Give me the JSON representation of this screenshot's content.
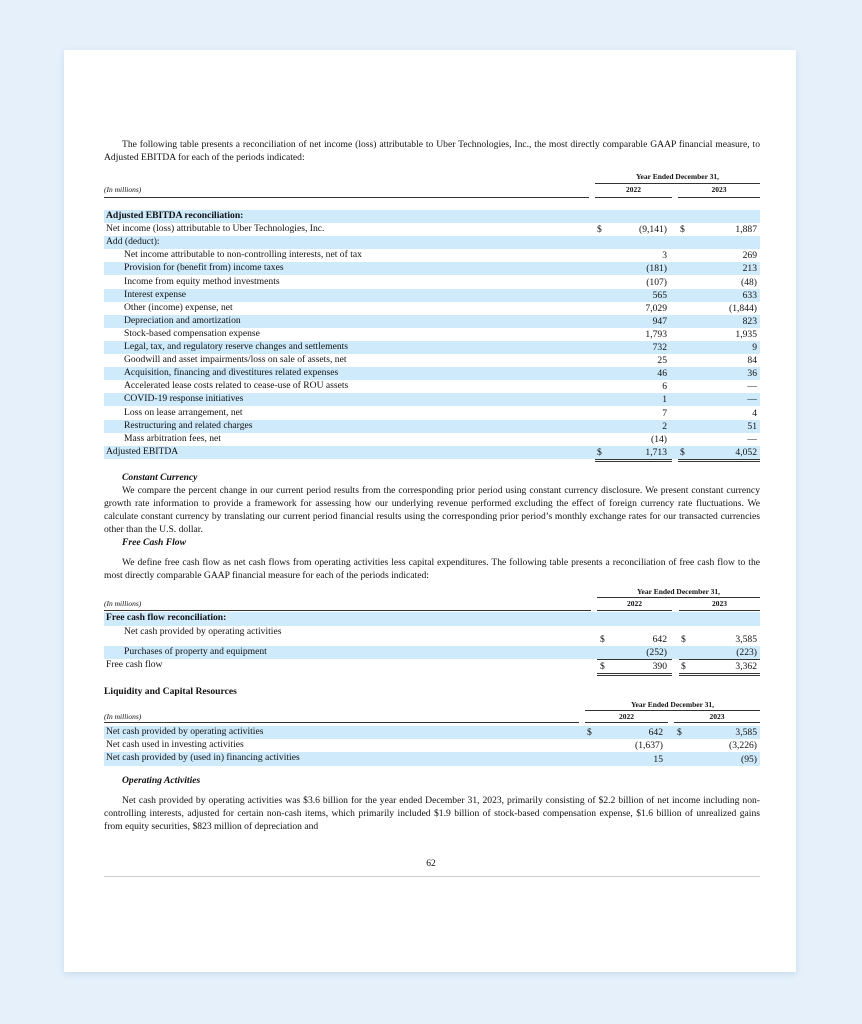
{
  "intro": "The following table presents a reconciliation of net income (loss) attributable to Uber Technologies, Inc., the most directly comparable GAAP financial measure, to Adjusted EBITDA for each of the periods indicated:",
  "tables": [
    {
      "units": "(In millions)",
      "period_header": "Year Ended December 31,",
      "years": [
        "2022",
        "2023"
      ],
      "rows": [
        {
          "label": "Adjusted EBITDA reconciliation:",
          "bold": true
        },
        {
          "label": "Net income (loss) attributable to Uber Technologies, Inc.",
          "d1": "$",
          "v1": "(9,141)",
          "d2": "$",
          "v2": "1,887"
        },
        {
          "label": "Add (deduct):"
        },
        {
          "label": "Net income attributable to non-controlling interests, net of tax",
          "indent": true,
          "v1": "3",
          "v2": "269"
        },
        {
          "label": "Provision for (benefit from) income taxes",
          "indent": true,
          "v1": "(181)",
          "v2": "213"
        },
        {
          "label": "Income from equity method investments",
          "indent": true,
          "v1": "(107)",
          "v2": "(48)"
        },
        {
          "label": "Interest expense",
          "indent": true,
          "v1": "565",
          "v2": "633"
        },
        {
          "label": "Other (income) expense, net",
          "indent": true,
          "v1": "7,029",
          "v2": "(1,844)"
        },
        {
          "label": "Depreciation and amortization",
          "indent": true,
          "v1": "947",
          "v2": "823"
        },
        {
          "label": "Stock-based compensation expense",
          "indent": true,
          "v1": "1,793",
          "v2": "1,935"
        },
        {
          "label": "Legal, tax, and regulatory reserve changes and settlements",
          "indent": true,
          "v1": "732",
          "v2": "9"
        },
        {
          "label": "Goodwill and asset impairments/loss on sale of assets, net",
          "indent": true,
          "v1": "25",
          "v2": "84"
        },
        {
          "label": "Acquisition, financing and divestitures related expenses",
          "indent": true,
          "v1": "46",
          "v2": "36"
        },
        {
          "label": "Accelerated lease costs related to cease-use of ROU assets",
          "indent": true,
          "v1": "6",
          "v2": "—"
        },
        {
          "label": "COVID-19 response initiatives",
          "indent": true,
          "v1": "1",
          "v2": "—"
        },
        {
          "label": "Loss on lease arrangement, net",
          "indent": true,
          "v1": "7",
          "v2": "4"
        },
        {
          "label": "Restructuring and related charges",
          "indent": true,
          "v1": "2",
          "v2": "51"
        },
        {
          "label": "Mass arbitration fees, net",
          "indent": true,
          "v1": "(14)",
          "v2": "—",
          "underline": "single"
        },
        {
          "label": "Adjusted EBITDA",
          "d1": "$",
          "v1": "1,713",
          "d2": "$",
          "v2": "4,052",
          "underline": "double"
        }
      ]
    },
    {
      "units": "(In millions)",
      "period_header": "Year Ended December 31,",
      "years": [
        "2022",
        "2023"
      ],
      "rows": [
        {
          "label": "Free cash flow reconciliation:",
          "bold": true
        },
        {
          "label": "Net cash provided by operating activities",
          "indent": true,
          "d1": "$",
          "v1": "642",
          "d2": "$",
          "v2": "3,585",
          "tall": true
        },
        {
          "label": "Purchases of property and equipment",
          "indent": true,
          "v1": "(252)",
          "v2": "(223)",
          "underline": "single"
        },
        {
          "label": "Free cash flow",
          "d1": "$",
          "v1": "390",
          "d2": "$",
          "v2": "3,362",
          "underline": "double"
        }
      ]
    },
    {
      "units": "(In millions)",
      "period_header": "Year Ended December 31,",
      "years": [
        "2022",
        "2023"
      ],
      "rows": [
        {
          "label": "Net cash provided by operating activities",
          "d1": "$",
          "v1": "642",
          "d2": "$",
          "v2": "3,585"
        },
        {
          "label": "Net cash used in investing activities",
          "v1": "(1,637)",
          "v2": "(3,226)"
        },
        {
          "label": "Net cash provided by (used in) financing activities",
          "v1": "15",
          "v2": "(95)"
        }
      ]
    }
  ],
  "constant_currency": {
    "heading": "Constant Currency",
    "body": "We compare the percent change in our current period results from the corresponding prior period using constant currency disclosure. We present constant currency growth rate information to provide a framework for assessing how our underlying revenue performed excluding the effect of foreign currency rate fluctuations. We calculate constant currency by translating our current period financial results using the corresponding prior period’s monthly exchange rates for our transacted currencies other than the U.S. dollar."
  },
  "free_cash_flow": {
    "heading": "Free Cash Flow",
    "body": "We define free cash flow as net cash flows from operating activities less capital expenditures. The following table presents a reconciliation of free cash flow to the most directly comparable GAAP financial measure for each of the periods indicated:"
  },
  "liquidity": {
    "heading": "Liquidity and Capital Resources"
  },
  "operating": {
    "heading": "Operating Activities",
    "body": "Net cash provided by operating activities was $3.6 billion for the year ended December 31, 2023, primarily consisting of $2.2 billion of net income including non-controlling interests, adjusted for certain non-cash items, which primarily included $1.9 billion of stock-based compensation expense, $1.6 billion of unrealized gains from equity securities, $823 million of depreciation and"
  },
  "page_number": "62",
  "colors": {
    "row_shade": "#cfeafb",
    "background": "#e5f0fb"
  }
}
